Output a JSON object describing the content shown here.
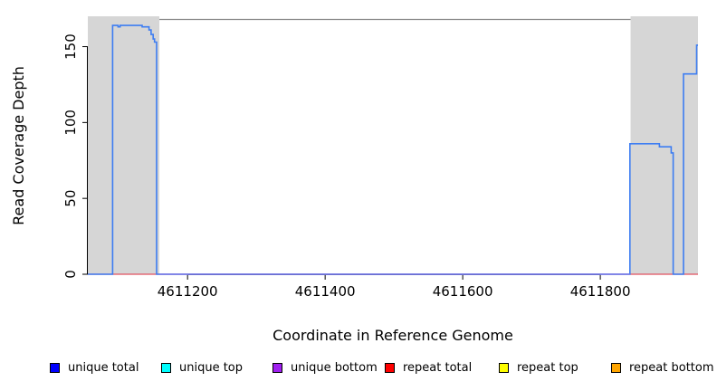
{
  "chart_data": {
    "type": "line",
    "title": "",
    "xlabel": "Coordinate in Reference Genome",
    "ylabel": "Read Coverage Depth",
    "xlim": [
      4611055,
      4611942
    ],
    "ylim": [
      0,
      170
    ],
    "grid": false,
    "legend_position": "bottom",
    "xticks": [
      {
        "value": 4611200,
        "label": "4611200"
      },
      {
        "value": 4611400,
        "label": "4611400"
      },
      {
        "value": 4611600,
        "label": "4611600"
      },
      {
        "value": 4611800,
        "label": "4611800"
      }
    ],
    "yticks": [
      {
        "value": 0,
        "label": "0"
      },
      {
        "value": 50,
        "label": "50"
      },
      {
        "value": 100,
        "label": "100"
      },
      {
        "value": 150,
        "label": "150"
      }
    ],
    "repeat_regions": [
      {
        "start": 4611055,
        "end": 4611159
      },
      {
        "start": 4611844,
        "end": 4611942
      }
    ],
    "region_fill": "#d6d6d6",
    "frame_top_color": "#888888",
    "axis_color": "#000000",
    "baseline_blend_color": "#7b7be8",
    "series": [
      {
        "name": "repeat total",
        "color": "#e0505f",
        "points": [
          [
            4611055,
            0
          ],
          [
            4611942,
            0
          ]
        ]
      },
      {
        "name": "unique total",
        "color": "#3d7df2",
        "points": [
          [
            4611055,
            0
          ],
          [
            4611091,
            0
          ],
          [
            4611091,
            164
          ],
          [
            4611099,
            164
          ],
          [
            4611099,
            163
          ],
          [
            4611102,
            163
          ],
          [
            4611102,
            164
          ],
          [
            4611134,
            164
          ],
          [
            4611134,
            163
          ],
          [
            4611144,
            163
          ],
          [
            4611144,
            161
          ],
          [
            4611147,
            161
          ],
          [
            4611147,
            158
          ],
          [
            4611150,
            158
          ],
          [
            4611150,
            155
          ],
          [
            4611152,
            155
          ],
          [
            4611152,
            153
          ],
          [
            4611155,
            153
          ],
          [
            4611155,
            0
          ],
          [
            4611843,
            0
          ],
          [
            4611843,
            86
          ],
          [
            4611886,
            86
          ],
          [
            4611886,
            84
          ],
          [
            4611903,
            84
          ],
          [
            4611903,
            80
          ],
          [
            4611906,
            80
          ],
          [
            4611906,
            0
          ],
          [
            4611921,
            0
          ],
          [
            4611921,
            132
          ],
          [
            4611940,
            132
          ],
          [
            4611940,
            151
          ],
          [
            4611942,
            151
          ]
        ]
      }
    ]
  },
  "legend": {
    "items": [
      {
        "label": "unique total",
        "color": "#0000ff"
      },
      {
        "label": "unique top",
        "color": "#00ffff"
      },
      {
        "label": "unique bottom",
        "color": "#a020f0"
      },
      {
        "label": "repeat total",
        "color": "#ff0000"
      },
      {
        "label": "repeat top",
        "color": "#ffff00"
      },
      {
        "label": "repeat bottom",
        "color": "#ffa500"
      }
    ]
  }
}
